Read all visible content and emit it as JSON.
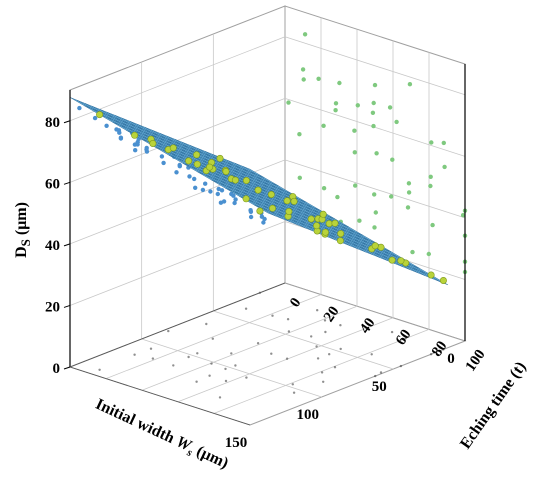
{
  "chart_data": {
    "type": "scatter3d-surface",
    "title": "",
    "axes": {
      "x": {
        "label": "Initial width",
        "label_symbol": "W",
        "label_sub": "s",
        "label_unit": "(μm)",
        "range": [
          0,
          150
        ],
        "ticks": [
          "0",
          "50",
          "100",
          "150"
        ]
      },
      "y": {
        "label": "Eching time (t)",
        "range": [
          0,
          100
        ],
        "ticks": [
          "0",
          "20",
          "40",
          "60",
          "80",
          "100"
        ]
      },
      "z": {
        "label_main": "D",
        "label_sub": "S",
        "label_unit": "(μm)",
        "range": [
          0,
          90
        ],
        "ticks": [
          "0",
          "20",
          "40",
          "60",
          "80"
        ]
      }
    },
    "surface": {
      "model": "plane",
      "intercept": 19.5,
      "slope_width": 0.454,
      "slope_time": -0.045,
      "color": "#5aa7d6",
      "grid_color": "#2e6f9e"
    },
    "series": [
      {
        "kind": "points",
        "color": "#b9d33a"
      },
      {
        "kind": "projection-width-vs-D",
        "color": "#4a90d0"
      },
      {
        "kind": "projection-time-vs-D",
        "color": "#7fc97f"
      },
      {
        "kind": "projection-floor",
        "color": "#333333"
      }
    ],
    "grid": true,
    "box_color": "#a0a0a0"
  }
}
